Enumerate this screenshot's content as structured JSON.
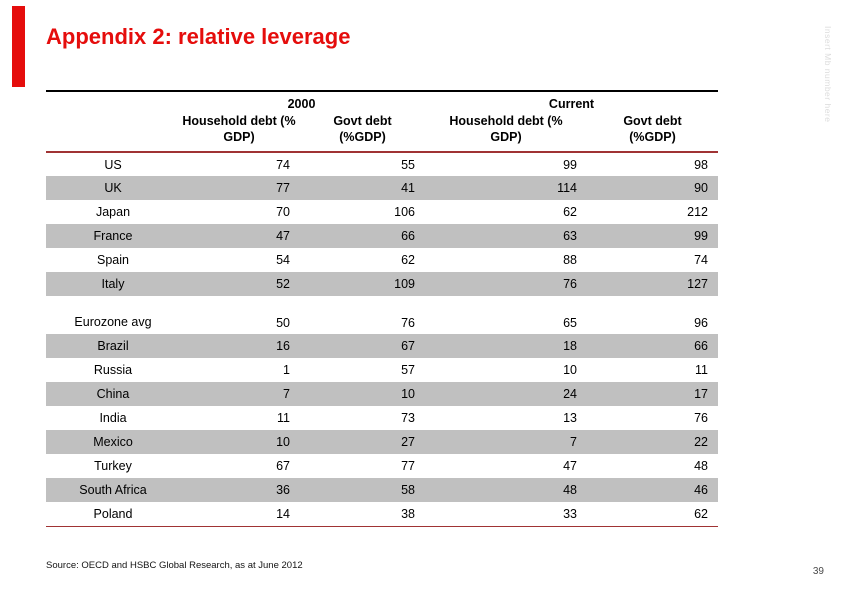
{
  "slide": {
    "title": "Appendix 2: relative leverage",
    "side_note": "Insert Mb number here",
    "page_number": "39"
  },
  "colors": {
    "accent_red": "#e50d0c",
    "line_red": "#a03334",
    "band_gray": "#c0c0c0"
  },
  "table": {
    "group_headers": [
      {
        "label": "2000"
      },
      {
        "label": "Current"
      }
    ],
    "column_headers": [
      "Household debt (% GDP)",
      "Govt debt (%GDP)",
      "Household debt (% GDP)",
      "Govt debt (%GDP)"
    ],
    "rows": [
      {
        "country": "US",
        "values": [
          74,
          55,
          99,
          98
        ]
      },
      {
        "country": "UK",
        "values": [
          77,
          41,
          114,
          90
        ]
      },
      {
        "country": "Japan",
        "values": [
          70,
          106,
          62,
          212
        ]
      },
      {
        "country": "France",
        "values": [
          47,
          66,
          63,
          99
        ]
      },
      {
        "country": "Spain",
        "values": [
          54,
          62,
          88,
          74
        ]
      },
      {
        "country": "Italy",
        "values": [
          52,
          109,
          76,
          127
        ]
      },
      {
        "country": "Eurozone avg",
        "values": [
          50,
          76,
          65,
          96
        ]
      },
      {
        "country": "Brazil",
        "values": [
          16,
          67,
          18,
          66
        ]
      },
      {
        "country": "Russia",
        "values": [
          1,
          57,
          10,
          11
        ]
      },
      {
        "country": "China",
        "values": [
          7,
          10,
          24,
          17
        ]
      },
      {
        "country": "India",
        "values": [
          11,
          73,
          13,
          76
        ]
      },
      {
        "country": "Mexico",
        "values": [
          10,
          27,
          7,
          22
        ]
      },
      {
        "country": "Turkey",
        "values": [
          67,
          77,
          47,
          48
        ]
      },
      {
        "country": "South Africa",
        "values": [
          36,
          58,
          48,
          46
        ]
      },
      {
        "country": "Poland",
        "values": [
          14,
          38,
          33,
          62
        ]
      }
    ]
  },
  "footer": {
    "source": "Source: OECD and HSBC Global Research, as at June 2012"
  }
}
